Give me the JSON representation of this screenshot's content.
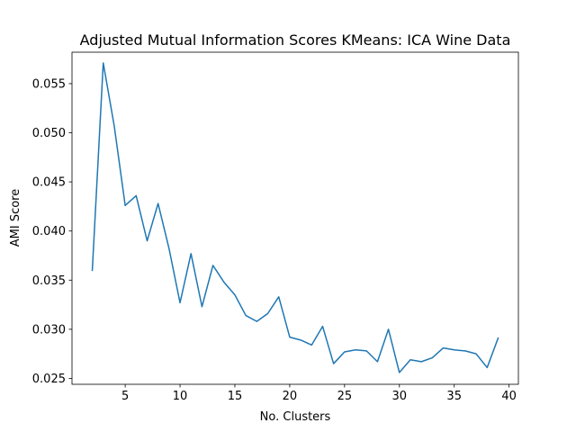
{
  "chart_data": {
    "type": "line",
    "title": "Adjusted Mutual Information Scores KMeans: ICA Wine Data",
    "xlabel": "No. Clusters",
    "ylabel": "AMI Score",
    "xlim": [
      0.15,
      40.85
    ],
    "ylim": [
      0.0244,
      0.0582
    ],
    "xticks": [
      5,
      10,
      15,
      20,
      25,
      30,
      35,
      40
    ],
    "xtick_labels": [
      "5",
      "10",
      "15",
      "20",
      "25",
      "30",
      "35",
      "40"
    ],
    "yticks": [
      0.025,
      0.03,
      0.035,
      0.04,
      0.045,
      0.05,
      0.055
    ],
    "ytick_labels": [
      "0.025",
      "0.030",
      "0.035",
      "0.040",
      "0.045",
      "0.050",
      "0.055"
    ],
    "grid": false,
    "series": [
      {
        "color": "#1f77b4",
        "x": [
          2,
          3,
          4,
          5,
          6,
          7,
          8,
          9,
          10,
          11,
          12,
          13,
          14,
          15,
          16,
          17,
          18,
          19,
          20,
          21,
          22,
          23,
          24,
          25,
          26,
          27,
          28,
          29,
          30,
          31,
          32,
          33,
          34,
          35,
          36,
          37,
          38,
          39
        ],
        "y": [
          0.036,
          0.0571,
          0.0507,
          0.0426,
          0.0436,
          0.039,
          0.0428,
          0.0382,
          0.0327,
          0.0377,
          0.0323,
          0.0365,
          0.0348,
          0.0335,
          0.0314,
          0.0308,
          0.0316,
          0.0333,
          0.0292,
          0.0289,
          0.0284,
          0.0303,
          0.0265,
          0.0277,
          0.0279,
          0.0278,
          0.0267,
          0.03,
          0.0256,
          0.0269,
          0.0267,
          0.0271,
          0.0281,
          0.0279,
          0.0278,
          0.0275,
          0.0261,
          0.0291
        ]
      }
    ]
  }
}
